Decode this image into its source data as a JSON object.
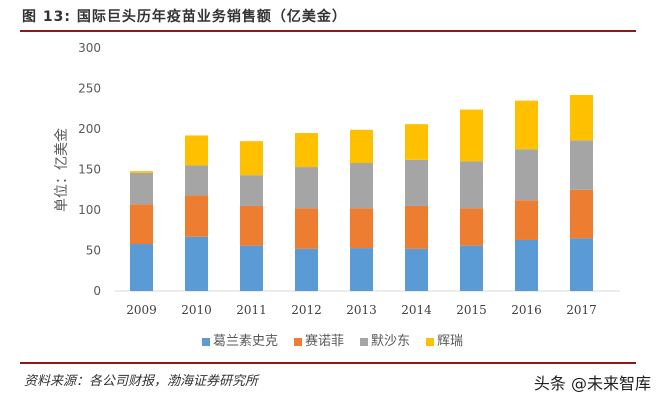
{
  "title": "图 13: 国际巨头历年疫苗业务销售额（亿美金）",
  "source": "资料来源：各公司财报，渤海证券研究所",
  "watermark": "头条 @未来智库",
  "chart_data": {
    "type": "bar",
    "stacked": true,
    "title": "",
    "xlabel": "",
    "ylabel": "单位：亿美金",
    "ylim": [
      0,
      300
    ],
    "yticks": [
      0,
      50,
      100,
      150,
      200,
      250,
      300
    ],
    "grid": false,
    "legend_position": "bottom",
    "categories": [
      "2009",
      "2010",
      "2011",
      "2012",
      "2013",
      "2014",
      "2015",
      "2016",
      "2017"
    ],
    "series": [
      {
        "name": "葛兰素史克",
        "color": "#5b9bd5",
        "values": [
          58,
          67,
          56,
          52,
          53,
          52,
          56,
          63,
          65
        ]
      },
      {
        "name": "赛诺菲",
        "color": "#ed7d31",
        "values": [
          49,
          51,
          49,
          50,
          49,
          53,
          46,
          49,
          60
        ]
      },
      {
        "name": "默沙东",
        "color": "#a5a5a5",
        "values": [
          39,
          37,
          38,
          51,
          56,
          57,
          58,
          63,
          61
        ]
      },
      {
        "name": "辉瑞",
        "color": "#ffc000",
        "values": [
          2,
          37,
          42,
          42,
          41,
          44,
          64,
          60,
          56
        ]
      }
    ]
  }
}
